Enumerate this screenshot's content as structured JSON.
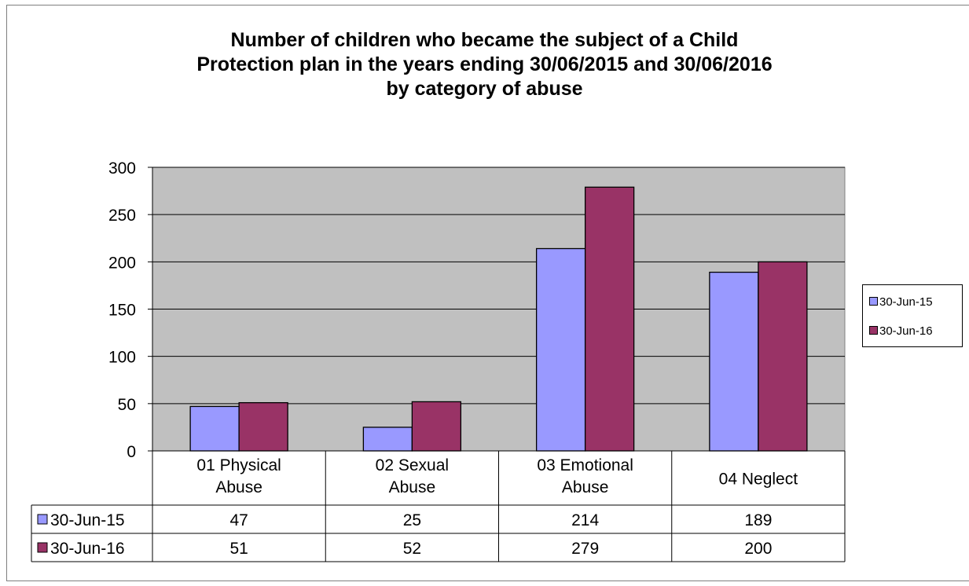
{
  "chart_data": {
    "type": "bar",
    "title_lines": [
      "Number of children who became the subject of a Child",
      "Protection plan in the years ending 30/06/2015 and 30/06/2016",
      "by category of abuse"
    ],
    "categories": [
      [
        "01 Physical",
        "Abuse"
      ],
      [
        "02 Sexual",
        "Abuse"
      ],
      [
        "03 Emotional",
        "Abuse"
      ],
      [
        "04 Neglect"
      ]
    ],
    "series": [
      {
        "name": "30-Jun-15",
        "values": [
          47,
          25,
          214,
          189
        ],
        "color": "#9999ff"
      },
      {
        "name": "30-Jun-16",
        "values": [
          51,
          52,
          279,
          200
        ],
        "color": "#993366"
      }
    ],
    "ylim": [
      0,
      300
    ],
    "yticks": [
      0,
      50,
      100,
      150,
      200,
      250,
      300
    ],
    "grid": true,
    "plot_background": "#c0c0c0",
    "legend_position": "right",
    "data_table": true,
    "xlabel": "",
    "ylabel": ""
  }
}
